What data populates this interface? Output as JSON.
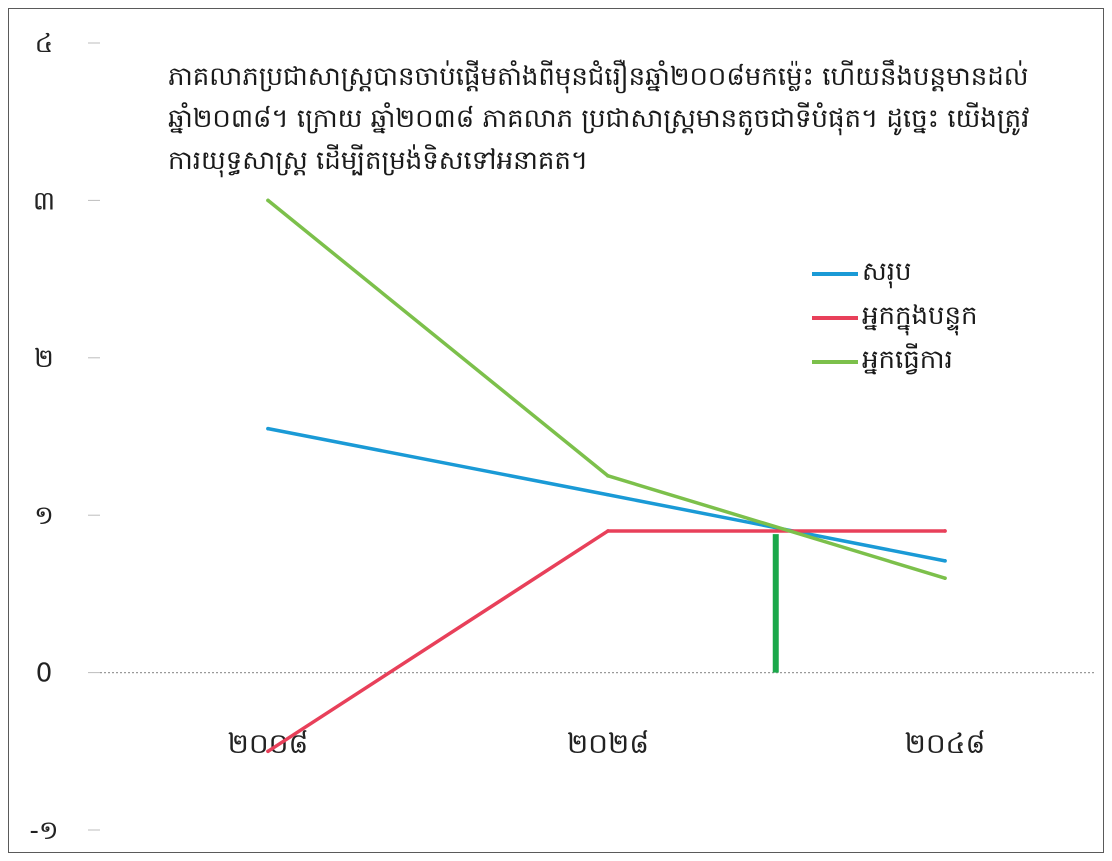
{
  "chart_data": {
    "type": "line",
    "title": "",
    "xlabel": "",
    "ylabel": "",
    "categories": [
      "២០០៨",
      "២០២៨",
      "២០៤៨"
    ],
    "ylim": [
      -1,
      4
    ],
    "y_ticks": [
      {
        "value": -1,
        "label": "-១"
      },
      {
        "value": 0,
        "label": "0"
      },
      {
        "value": 1,
        "label": "១"
      },
      {
        "value": 2,
        "label": "២"
      },
      {
        "value": 3,
        "label": "៣"
      },
      {
        "value": 4,
        "label": "៤"
      }
    ],
    "series": [
      {
        "name": "សរុប",
        "color": "#1a9ad6",
        "values": [
          1.55,
          1.13,
          0.71
        ]
      },
      {
        "name": "អ្នកក្នុងបន្ទុក",
        "color": "#e8405a",
        "values": [
          -0.5,
          0.9,
          0.9
        ]
      },
      {
        "name": "អ្នកធ្វើការ",
        "color": "#7cc04b",
        "values": [
          3.0,
          1.25,
          0.6
        ]
      }
    ],
    "marker": {
      "x": 2038,
      "y": 0.88,
      "color": "#1aa84a"
    },
    "annotation": [
      "ភាគលាភប្រជាសាស្ត្របានចាប់ផ្តើមតាំងពីមុនជំរឿនឆ្នាំ២០០៨មកម្ល៉េះ ហើយនឹងបន្តមានដល់",
      "ឆ្នាំ២០៣៨។ ក្រោយ ឆ្នាំ២០៣៨ ភាគលាភ ប្រជាសាស្ត្រមានតូចជាទីបំផុត។ ដូច្នេះ យើងត្រូវ",
      "ការយុទ្ធសាស្ត្រ ដើម្បីតម្រង់ទិសទៅអនាគត។"
    ],
    "legend_position": "right",
    "grid": false
  }
}
